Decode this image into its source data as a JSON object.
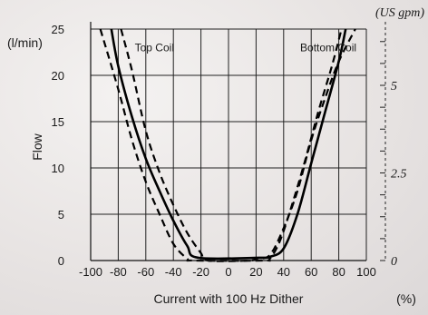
{
  "chart_data": {
    "type": "line",
    "xlabel": "Current with 100 Hz Dither",
    "x_unit": "(%)",
    "ylabel": "Flow",
    "y_unit": "(l/min)",
    "y2_unit": "(US gpm)",
    "xlim": [
      -100,
      100
    ],
    "ylim": [
      0,
      25
    ],
    "x_ticks": [
      -100,
      -80,
      -60,
      -40,
      -20,
      0,
      20,
      40,
      60,
      80,
      100
    ],
    "y_ticks": [
      0,
      5,
      10,
      15,
      20,
      25
    ],
    "y2_ticks": [
      {
        "label": "0",
        "value": 0
      },
      {
        "label": "2.5",
        "value": 9.46
      },
      {
        "label": "5",
        "value": 18.93
      }
    ],
    "annotations": [
      {
        "text": "Top Coil",
        "x": -68,
        "y": 22.6
      },
      {
        "text": "Bottom Coil",
        "x": 52,
        "y": 22.6
      }
    ],
    "grid": true,
    "series": [
      {
        "style": "solid",
        "x": [
          -85,
          -80,
          -70,
          -60,
          -50,
          -40,
          -30,
          -22,
          22,
          30,
          40,
          50,
          60,
          70,
          80,
          85
        ],
        "y": [
          25,
          21,
          15.5,
          11,
          7.5,
          4.3,
          1.6,
          0.3,
          0.3,
          0.4,
          1.3,
          5,
          10.5,
          16,
          21.5,
          25
        ]
      },
      {
        "style": "dashed",
        "x": [
          -93,
          -80,
          -70,
          -60,
          -50,
          -40,
          -30,
          -25,
          25,
          30,
          37,
          45,
          55,
          65,
          75,
          82
        ],
        "y": [
          25,
          18.5,
          13,
          8.5,
          5,
          1.8,
          0.2,
          0,
          0,
          0.2,
          2,
          5.5,
          10.5,
          16,
          21,
          25
        ]
      },
      {
        "style": "dashed",
        "x": [
          -78,
          -70,
          -60,
          -50,
          -40,
          -30,
          -20,
          -15,
          15,
          20,
          30,
          40,
          50,
          60,
          70,
          80,
          92
        ],
        "y": [
          25,
          20.5,
          14,
          9.5,
          6,
          3,
          0.8,
          0,
          0,
          0.2,
          0.6,
          3.5,
          7.5,
          13,
          17.5,
          21.5,
          25
        ]
      }
    ]
  }
}
